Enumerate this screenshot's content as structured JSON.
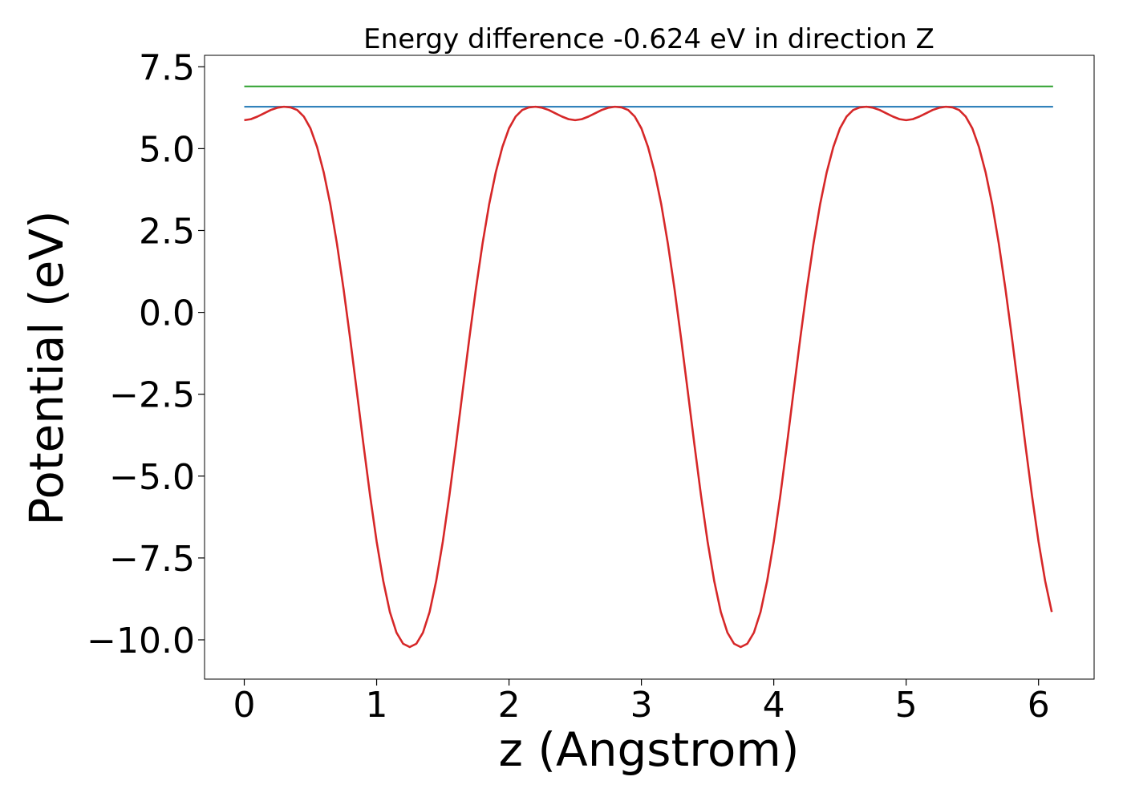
{
  "chart_data": {
    "type": "line",
    "title": "Energy difference -0.624 eV in direction Z",
    "xlabel": "z (Angstrom)",
    "ylabel": "Potential (eV)",
    "xlim": [
      -0.3,
      6.42
    ],
    "ylim": [
      -11.2,
      7.85
    ],
    "xticks": [
      0,
      1,
      2,
      3,
      4,
      5,
      6
    ],
    "xtick_labels": [
      "0",
      "1",
      "2",
      "3",
      "4",
      "5",
      "6"
    ],
    "yticks": [
      7.5,
      5.0,
      2.5,
      0.0,
      -2.5,
      -5.0,
      -7.5,
      -10.0
    ],
    "ytick_labels": [
      "7.5",
      "5.0",
      "2.5",
      "0.0",
      "−2.5",
      "−5.0",
      "−7.5",
      "−10.0"
    ],
    "grid": false,
    "series": [
      {
        "color": "#2ca02c",
        "x": [
          0,
          6.11
        ],
        "y": [
          6.9,
          6.9
        ]
      },
      {
        "color": "#1f77b4",
        "x": [
          0,
          6.11
        ],
        "y": [
          6.28,
          6.28
        ]
      },
      {
        "color": "#d62728",
        "x": [
          0.0,
          0.05,
          0.1,
          0.15,
          0.2,
          0.25,
          0.3,
          0.35,
          0.4,
          0.45,
          0.5,
          0.55,
          0.6,
          0.65,
          0.7,
          0.75,
          0.8,
          0.85,
          0.9,
          0.95,
          1.0,
          1.05,
          1.1,
          1.15,
          1.2,
          1.25,
          1.3,
          1.35,
          1.4,
          1.45,
          1.5,
          1.55,
          1.6,
          1.65,
          1.7,
          1.75,
          1.8,
          1.85,
          1.9,
          1.95,
          2.0,
          2.05,
          2.1,
          2.15,
          2.2,
          2.25,
          2.3,
          2.35,
          2.4,
          2.45,
          2.5,
          2.55,
          2.6,
          2.65,
          2.7,
          2.75,
          2.8,
          2.85,
          2.9,
          2.95,
          3.0,
          3.05,
          3.1,
          3.15,
          3.2,
          3.25,
          3.3,
          3.35,
          3.4,
          3.45,
          3.5,
          3.55,
          3.6,
          3.65,
          3.7,
          3.75,
          3.8,
          3.85,
          3.9,
          3.95,
          4.0,
          4.05,
          4.1,
          4.15,
          4.2,
          4.25,
          4.3,
          4.35,
          4.4,
          4.45,
          4.5,
          4.55,
          4.6,
          4.65,
          4.7,
          4.75,
          4.8,
          4.85,
          4.9,
          4.95,
          5.0,
          5.05,
          5.1,
          5.15,
          5.2,
          5.25,
          5.3,
          5.35,
          5.4,
          5.45,
          5.5,
          5.55,
          5.6,
          5.65,
          5.7,
          5.75,
          5.8,
          5.85,
          5.9,
          5.95,
          6.0,
          6.05,
          6.1
        ],
        "y": [
          5.87,
          5.9,
          5.98,
          6.08,
          6.18,
          6.25,
          6.28,
          6.26,
          6.18,
          5.98,
          5.62,
          5.05,
          4.28,
          3.3,
          2.1,
          0.72,
          -0.8,
          -2.4,
          -4.02,
          -5.58,
          -7.0,
          -8.2,
          -9.15,
          -9.78,
          -10.12,
          -10.22,
          -10.12,
          -9.78,
          -9.15,
          -8.2,
          -7.0,
          -5.58,
          -4.02,
          -2.4,
          -0.8,
          0.72,
          2.1,
          3.3,
          4.28,
          5.05,
          5.62,
          5.98,
          6.18,
          6.26,
          6.28,
          6.25,
          6.18,
          6.08,
          5.98,
          5.9,
          5.87,
          5.9,
          5.98,
          6.08,
          6.18,
          6.25,
          6.28,
          6.26,
          6.18,
          5.98,
          5.62,
          5.05,
          4.28,
          3.3,
          2.1,
          0.72,
          -0.8,
          -2.4,
          -4.02,
          -5.58,
          -7.0,
          -8.2,
          -9.15,
          -9.78,
          -10.12,
          -10.22,
          -10.12,
          -9.78,
          -9.15,
          -8.2,
          -7.0,
          -5.58,
          -4.02,
          -2.4,
          -0.8,
          0.72,
          2.1,
          3.3,
          4.28,
          5.05,
          5.62,
          5.98,
          6.18,
          6.26,
          6.28,
          6.25,
          6.18,
          6.08,
          5.98,
          5.9,
          5.87,
          5.9,
          5.98,
          6.08,
          6.18,
          6.25,
          6.28,
          6.26,
          6.18,
          5.98,
          5.62,
          5.05,
          4.28,
          3.3,
          2.1,
          0.72,
          -0.8,
          -2.4,
          -4.02,
          -5.58,
          -7.0,
          -8.2,
          -9.15
        ]
      }
    ]
  }
}
